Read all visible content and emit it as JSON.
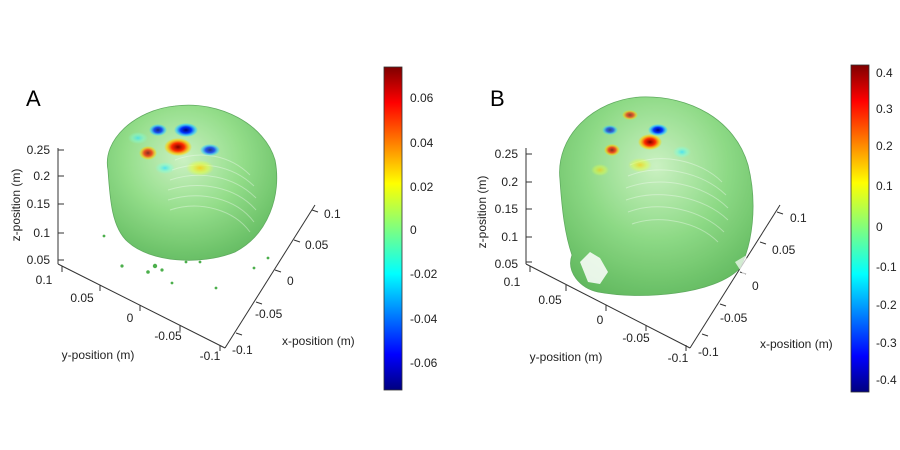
{
  "panels": [
    {
      "id": "A",
      "letter": "A",
      "z_label": "z-position (m)",
      "y_label": "y-position (m)",
      "x_label": "x-position (m)",
      "z_ticks": [
        "0.25",
        "0.2",
        "0.15",
        "0.1",
        "0.05"
      ],
      "y_ticks": [
        "0.1",
        "0.05",
        "0",
        "-0.05",
        "-0.1"
      ],
      "x_ticks": [
        "0.1",
        "0.05",
        "0",
        "-0.05",
        "-0.1"
      ],
      "colorbar_ticks": [
        "0.06",
        "0.04",
        "0.02",
        "0",
        "-0.02",
        "-0.04",
        "-0.06"
      ]
    },
    {
      "id": "B",
      "letter": "B",
      "z_label": "z-position (m)",
      "y_label": "y-position (m)",
      "x_label": "x-position (m)",
      "z_ticks": [
        "0.25",
        "0.2",
        "0.15",
        "0.1",
        "0.05"
      ],
      "y_ticks": [
        "0.1",
        "0.05",
        "0",
        "-0.05",
        "-0.1"
      ],
      "x_ticks": [
        "0.1",
        "0.05",
        "0",
        "-0.05",
        "-0.1"
      ],
      "colorbar_ticks": [
        "0.4",
        "0.3",
        "0.2",
        "0.1",
        "0",
        "-0.1",
        "-0.2",
        "-0.3",
        "-0.4"
      ]
    }
  ],
  "colors": {
    "head_surface": "#6fcf6f",
    "head_shadow": "#4fa84f",
    "colormap": [
      "#00007f",
      "#0000ff",
      "#007fff",
      "#00ffff",
      "#7fff7f",
      "#ffff00",
      "#ff7f00",
      "#ff0000",
      "#7f0000"
    ]
  }
}
